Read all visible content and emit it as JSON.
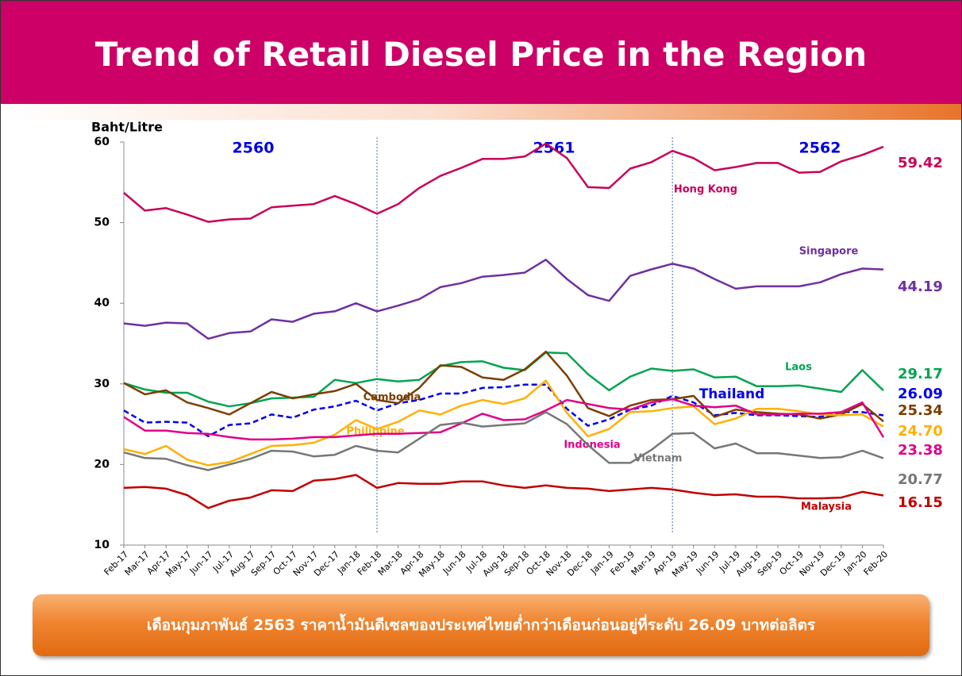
{
  "chart_data": {
    "type": "line",
    "title": "Trend of Retail Diesel Price in the Region",
    "y_label": "Baht/Litre",
    "footer": "เดือนกุมภาพันธ์ 2563 ราคาน้ำมันดีเซลของประเทศไทยต่ำกว่าเดือนก่อนอยู่ที่ระดับ 26.09 บาทต่อลิตร",
    "annotations": [
      "2560",
      "2561",
      "2562"
    ],
    "dividers": [
      "Feb-18",
      "Apr-19"
    ],
    "categories": [
      "Feb-17",
      "Mar-17",
      "Apr-17",
      "May-17",
      "Jun-17",
      "Jul-17",
      "Aug-17",
      "Sep-17",
      "Oct-17",
      "Nov-17",
      "Dec-17",
      "Jan-18",
      "Feb-18",
      "Mar-18",
      "Apr-18",
      "May-18",
      "Jun-18",
      "Jul-18",
      "Aug-18",
      "Sep-18",
      "Oct-18",
      "Nov-18",
      "Dec-18",
      "Jan-19",
      "Feb-19",
      "Mar-19",
      "Apr-19",
      "May-19",
      "Jun-19",
      "Jul-19",
      "Aug-19",
      "Sep-19",
      "Oct-19",
      "Nov-19",
      "Dec-19",
      "Jan-20",
      "Feb-20"
    ],
    "ylim": [
      10,
      60
    ],
    "yticks": [
      10,
      20,
      30,
      40,
      50,
      60
    ],
    "grid": false,
    "series": [
      {
        "name": "Hong Kong",
        "color": "#c8005a",
        "values": [
          53.7,
          51.5,
          51.8,
          51.0,
          50.1,
          50.4,
          50.5,
          51.9,
          52.1,
          52.3,
          53.3,
          52.3,
          51.1,
          52.3,
          54.3,
          55.8,
          56.8,
          57.9,
          57.9,
          58.2,
          59.8,
          58.0,
          54.4,
          54.3,
          56.7,
          57.5,
          58.9,
          58.0,
          56.5,
          56.9,
          57.4,
          57.4,
          56.2,
          56.3,
          57.6,
          58.4,
          59.42
        ]
      },
      {
        "name": "Singapore",
        "color": "#7030a0",
        "values": [
          37.5,
          37.2,
          37.6,
          37.5,
          35.6,
          36.3,
          36.5,
          38.0,
          37.7,
          38.7,
          39.0,
          40.0,
          39.0,
          39.7,
          40.5,
          42.0,
          42.5,
          43.3,
          43.5,
          43.8,
          45.4,
          43.0,
          41.0,
          40.3,
          43.4,
          44.2,
          44.9,
          44.3,
          43.0,
          41.8,
          42.1,
          42.1,
          42.1,
          42.6,
          43.6,
          44.3,
          44.19
        ]
      },
      {
        "name": "Laos",
        "color": "#00a550",
        "values": [
          30.1,
          29.3,
          28.9,
          28.9,
          27.8,
          27.2,
          27.6,
          28.2,
          28.3,
          28.4,
          30.5,
          30.1,
          30.6,
          30.3,
          30.5,
          32.2,
          32.7,
          32.8,
          32.0,
          31.7,
          33.9,
          33.8,
          31.2,
          29.2,
          30.9,
          31.9,
          31.6,
          31.8,
          30.8,
          30.9,
          29.7,
          29.7,
          29.8,
          29.4,
          29.0,
          31.7,
          29.17
        ]
      },
      {
        "name": "Thailand",
        "color": "#0000ee",
        "dashed": true,
        "values": [
          26.7,
          25.2,
          25.3,
          25.2,
          23.5,
          24.9,
          25.1,
          26.2,
          25.8,
          26.8,
          27.2,
          27.9,
          26.7,
          27.6,
          28.0,
          28.8,
          28.8,
          29.5,
          29.6,
          29.9,
          29.9,
          26.9,
          24.8,
          25.6,
          26.8,
          27.3,
          28.5,
          27.7,
          26.1,
          26.4,
          26.1,
          26.1,
          26.0,
          25.9,
          26.5,
          26.5,
          26.09
        ]
      },
      {
        "name": "Cambodia",
        "color": "#7b3f00",
        "values": [
          30.1,
          28.7,
          29.2,
          27.7,
          27.0,
          26.2,
          27.6,
          29.0,
          28.2,
          28.7,
          29.1,
          30.0,
          28.0,
          27.6,
          29.5,
          32.3,
          32.1,
          30.8,
          30.5,
          31.8,
          34.0,
          31.0,
          27.0,
          26.0,
          27.3,
          28.0,
          28.1,
          28.5,
          25.9,
          26.8,
          26.5,
          26.3,
          26.2,
          25.7,
          26.2,
          27.5,
          25.34
        ]
      },
      {
        "name": "Philippine",
        "color": "#ffb000",
        "values": [
          21.9,
          21.3,
          22.3,
          20.6,
          19.9,
          20.3,
          21.3,
          22.3,
          22.4,
          22.7,
          23.7,
          25.5,
          24.4,
          25.3,
          26.7,
          26.2,
          27.3,
          28.0,
          27.5,
          28.2,
          30.4,
          26.4,
          23.5,
          24.4,
          26.5,
          26.6,
          27.0,
          27.2,
          25.0,
          25.7,
          26.9,
          26.9,
          26.6,
          26.2,
          26.1,
          26.2,
          24.7
        ],
        "value_labels": [
          null,
          null,
          null,
          null,
          null,
          null,
          null,
          null,
          null,
          null,
          null,
          null,
          null,
          null,
          null,
          null,
          null,
          null,
          null,
          null,
          null,
          null,
          null,
          null,
          null,
          null,
          null,
          null,
          null,
          null,
          null,
          null,
          null,
          null,
          null,
          null,
          "24.70"
        ]
      },
      {
        "name": "Indonesia",
        "color": "#e0008a",
        "values": [
          25.9,
          24.2,
          24.2,
          23.9,
          23.8,
          23.4,
          23.1,
          23.1,
          23.2,
          23.4,
          23.4,
          23.6,
          23.8,
          23.8,
          23.9,
          24.0,
          25.1,
          26.3,
          25.5,
          25.6,
          26.7,
          28.0,
          27.5,
          27.0,
          26.8,
          27.7,
          28.1,
          27.3,
          27.1,
          27.3,
          26.2,
          26.2,
          26.3,
          26.3,
          26.5,
          27.7,
          23.38
        ]
      },
      {
        "name": "Vietnam",
        "color": "#777777",
        "values": [
          21.5,
          20.8,
          20.7,
          19.9,
          19.3,
          20.0,
          20.7,
          21.7,
          21.6,
          21.0,
          21.2,
          22.3,
          21.7,
          21.5,
          23.2,
          24.9,
          25.2,
          24.7,
          24.9,
          25.1,
          26.5,
          25.0,
          22.4,
          20.2,
          20.2,
          21.8,
          23.8,
          23.9,
          22.0,
          22.6,
          21.4,
          21.4,
          21.1,
          20.8,
          20.9,
          21.7,
          20.77
        ]
      },
      {
        "name": "Malaysia",
        "color": "#c00000",
        "values": [
          17.1,
          17.2,
          17.0,
          16.2,
          14.6,
          15.5,
          15.9,
          16.8,
          16.7,
          18.0,
          18.2,
          18.7,
          17.1,
          17.7,
          17.6,
          17.6,
          17.9,
          17.9,
          17.4,
          17.1,
          17.4,
          17.1,
          17.0,
          16.7,
          16.9,
          17.1,
          16.9,
          16.5,
          16.2,
          16.3,
          16.0,
          16.0,
          15.8,
          15.8,
          15.9,
          16.6,
          16.15
        ]
      }
    ]
  }
}
